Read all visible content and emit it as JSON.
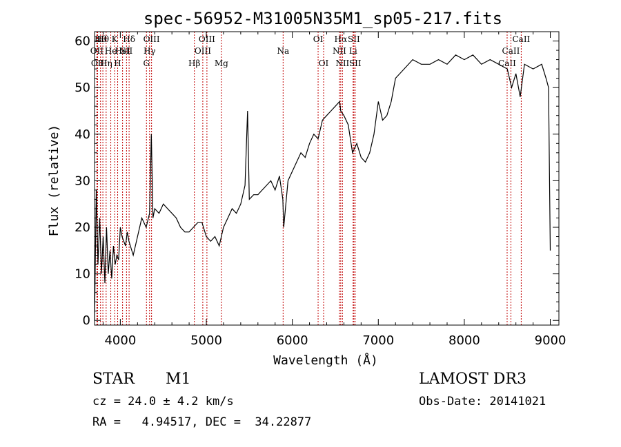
{
  "chart_data": {
    "type": "line",
    "title": "spec-56952-M31005N35M1_sp05-217.fits",
    "xlabel": "Wavelength (Å)",
    "ylabel": "Flux (relative)",
    "xlim": [
      3700,
      9100
    ],
    "ylim": [
      -1,
      62
    ],
    "xticks": [
      4000,
      5000,
      6000,
      7000,
      8000,
      9000
    ],
    "yticks": [
      0,
      10,
      20,
      30,
      40,
      50,
      60
    ],
    "series": [
      {
        "x": [
          3700,
          3720,
          3740,
          3760,
          3780,
          3800,
          3820,
          3840,
          3860,
          3880,
          3900,
          3920,
          3940,
          3960,
          3980,
          4000,
          4020,
          4040,
          4060,
          4080,
          4100,
          4150,
          4200,
          4250,
          4300,
          4340,
          4360,
          4380,
          4400,
          4450,
          4500,
          4550,
          4600,
          4650,
          4700,
          4750,
          4800,
          4850,
          4900,
          4950,
          5000,
          5050,
          5100,
          5150,
          5200,
          5250,
          5300,
          5350,
          5400,
          5450,
          5480,
          5500,
          5550,
          5600,
          5650,
          5700,
          5750,
          5800,
          5850,
          5890,
          5900,
          5950,
          6000,
          6050,
          6100,
          6150,
          6200,
          6250,
          6300,
          6350,
          6400,
          6450,
          6500,
          6550,
          6563,
          6600,
          6650,
          6700,
          6750,
          6800,
          6850,
          6900,
          6950,
          7000,
          7050,
          7100,
          7150,
          7200,
          7300,
          7400,
          7500,
          7600,
          7700,
          7800,
          7900,
          8000,
          8100,
          8200,
          8300,
          8400,
          8500,
          8550,
          8600,
          8650,
          8700,
          8800,
          8900,
          8950,
          8980,
          9000
        ],
        "y": [
          0,
          28,
          12,
          22,
          10,
          18,
          8,
          20,
          10,
          15,
          9,
          16,
          12,
          14,
          13,
          20,
          18,
          17,
          16,
          19,
          17,
          14,
          18,
          22,
          20,
          23,
          40,
          22,
          24,
          23,
          25,
          24,
          23,
          22,
          20,
          19,
          19,
          20,
          21,
          21,
          18,
          17,
          18,
          16,
          20,
          22,
          24,
          23,
          25,
          29,
          45,
          26,
          27,
          27,
          28,
          29,
          30,
          28,
          31,
          26,
          20,
          30,
          32,
          34,
          36,
          35,
          38,
          40,
          39,
          43,
          44,
          45,
          46,
          47,
          45,
          44,
          42,
          36,
          38,
          35,
          34,
          36,
          40,
          47,
          43,
          44,
          47,
          52,
          54,
          56,
          55,
          55,
          56,
          55,
          57,
          56,
          57,
          55,
          56,
          55,
          54,
          50,
          53,
          48,
          55,
          54,
          55,
          52,
          50,
          15
        ]
      }
    ],
    "spectral_lines": [
      {
        "x": 3727,
        "label": "OII",
        "row": 1
      },
      {
        "x": 3736,
        "label": "OII",
        "row": 2
      },
      {
        "x": 3770,
        "label": "Hθ",
        "row": 0
      },
      {
        "x": 3797,
        "label": "Hθ",
        "row": 0
      },
      {
        "x": 3835,
        "label": "Hη",
        "row": 2
      },
      {
        "x": 3889,
        "label": "He",
        "row": 1
      },
      {
        "x": 3934,
        "label": "K",
        "row": 0
      },
      {
        "x": 3969,
        "label": "H",
        "row": 2
      },
      {
        "x": 4026,
        "label": "HeI",
        "row": 1
      },
      {
        "x": 4072,
        "label": "SII",
        "row": 1
      },
      {
        "x": 4102,
        "label": "Hδ",
        "row": 0
      },
      {
        "x": 4304,
        "label": "G",
        "row": 2
      },
      {
        "x": 4340,
        "label": "Hγ",
        "row": 1
      },
      {
        "x": 4363,
        "label": "OIII",
        "row": 0
      },
      {
        "x": 4861,
        "label": "Hβ",
        "row": 2
      },
      {
        "x": 4959,
        "label": "OIII",
        "row": 1
      },
      {
        "x": 5007,
        "label": "OIII",
        "row": 0
      },
      {
        "x": 5175,
        "label": "Mg",
        "row": 2
      },
      {
        "x": 5893,
        "label": "Na",
        "row": 1
      },
      {
        "x": 6300,
        "label": "OI",
        "row": 0
      },
      {
        "x": 6364,
        "label": "OI",
        "row": 2
      },
      {
        "x": 6548,
        "label": "NII",
        "row": 1
      },
      {
        "x": 6563,
        "label": "Hα",
        "row": 0
      },
      {
        "x": 6583,
        "label": "NII",
        "row": 2
      },
      {
        "x": 6707,
        "label": "Li",
        "row": 1
      },
      {
        "x": 6716,
        "label": "SII",
        "row": 0
      },
      {
        "x": 6731,
        "label": "SII",
        "row": 2
      },
      {
        "x": 8498,
        "label": "CaII",
        "row": 2
      },
      {
        "x": 8542,
        "label": "CaII",
        "row": 1
      },
      {
        "x": 8662,
        "label": "CaII",
        "row": 0
      }
    ],
    "line_color": "#c00000",
    "grid": false,
    "legend": "none"
  },
  "info": {
    "object_type": "STAR",
    "subclass": "M1",
    "survey": "LAMOST DR3",
    "cz": "cz = 24.0 ± 4.2 km/s",
    "obs_date": "Obs-Date: 20141021",
    "radec": "RA =   4.94517, DEC =  34.22877"
  }
}
